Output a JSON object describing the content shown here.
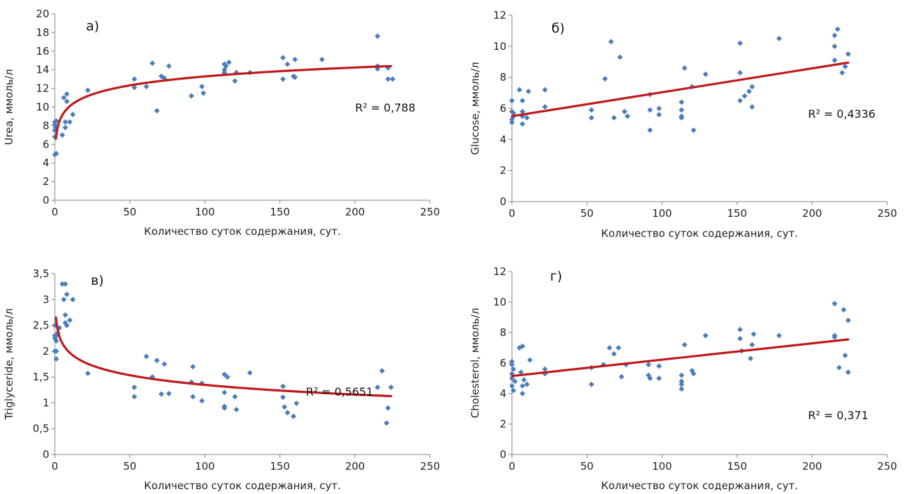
{
  "colors": {
    "point": "#4a7ebb",
    "trend": "#c0181c",
    "axis": "#808080"
  },
  "chart_data": [
    {
      "type": "scatter",
      "panel_label": "а)",
      "xlabel": "Количество суток содержания,  сут.",
      "ylabel": "Urea, ммоль/л",
      "xlim": [
        0,
        250
      ],
      "ylim": [
        0,
        20
      ],
      "xticks": [
        0,
        50,
        100,
        150,
        200,
        250
      ],
      "yticks": [
        0,
        2,
        4,
        6,
        8,
        10,
        12,
        14,
        16,
        18,
        20
      ],
      "ytick_labels": [
        "0",
        "2",
        "4",
        "6",
        "8",
        "10",
        "12",
        "14",
        "16",
        "18",
        "20"
      ],
      "grid": false,
      "trend": {
        "type": "logarithmic",
        "x_start": 0.8,
        "x_end": 224,
        "y_start": 6.6,
        "y_end": 14.4
      },
      "r2_label": "R² = 0,788",
      "points": [
        [
          0,
          4.9
        ],
        [
          0,
          6.8
        ],
        [
          0,
          7.5
        ],
        [
          0,
          8.1
        ],
        [
          0,
          8.4
        ],
        [
          0.5,
          7.8
        ],
        [
          1,
          5
        ],
        [
          1,
          8.5
        ],
        [
          5,
          7
        ],
        [
          6,
          11
        ],
        [
          7,
          7.8
        ],
        [
          7,
          8.4
        ],
        [
          8,
          11.4
        ],
        [
          8,
          10.6
        ],
        [
          10,
          8.4
        ],
        [
          12,
          9.2
        ],
        [
          22,
          11.8
        ],
        [
          53,
          12.1
        ],
        [
          53,
          13
        ],
        [
          61,
          12.2
        ],
        [
          65,
          14.7
        ],
        [
          68,
          9.6
        ],
        [
          71,
          13.3
        ],
        [
          73,
          13.1
        ],
        [
          76,
          14.4
        ],
        [
          91,
          11.2
        ],
        [
          98,
          12.2
        ],
        [
          99,
          11.5
        ],
        [
          113,
          14
        ],
        [
          113,
          13.7
        ],
        [
          113,
          14.6
        ],
        [
          114,
          14.4
        ],
        [
          116,
          14.8
        ],
        [
          120,
          12.8
        ],
        [
          121,
          13.7
        ],
        [
          130,
          13.7
        ],
        [
          152,
          15.3
        ],
        [
          152,
          13
        ],
        [
          155,
          14.6
        ],
        [
          159,
          13.3
        ],
        [
          160,
          13.2
        ],
        [
          160,
          15.1
        ],
        [
          178,
          15.1
        ],
        [
          215,
          17.6
        ],
        [
          215,
          14.4
        ],
        [
          215,
          14.1
        ],
        [
          222,
          14.2
        ],
        [
          222,
          13
        ],
        [
          225,
          13
        ]
      ]
    },
    {
      "type": "scatter",
      "panel_label": "б)",
      "xlabel": "Количество суток содержания,  сут.",
      "ylabel": "Glucose, ммоль/л",
      "xlim": [
        0,
        250
      ],
      "ylim": [
        0,
        12
      ],
      "xticks": [
        0,
        50,
        100,
        150,
        200,
        250
      ],
      "yticks": [
        0,
        2,
        4,
        6,
        8,
        10,
        12
      ],
      "ytick_labels": [
        "0",
        "2",
        "4",
        "6",
        "8",
        "10",
        "12"
      ],
      "grid": false,
      "trend": {
        "type": "linear",
        "x_start": 0,
        "x_end": 224,
        "y_start": 5.5,
        "y_end": 8.95
      },
      "r2_label": "R² = 0,4336",
      "points": [
        [
          0,
          6.5
        ],
        [
          0,
          5.8
        ],
        [
          0,
          5.3
        ],
        [
          0,
          5.1
        ],
        [
          1,
          5.7
        ],
        [
          1,
          5.5
        ],
        [
          5,
          7.2
        ],
        [
          7,
          6.5
        ],
        [
          7,
          5
        ],
        [
          7,
          5.8
        ],
        [
          7,
          5.5
        ],
        [
          10,
          5.4
        ],
        [
          11,
          7.1
        ],
        [
          22,
          7.2
        ],
        [
          22,
          6.1
        ],
        [
          53,
          5.9
        ],
        [
          53,
          5.4
        ],
        [
          62,
          7.9
        ],
        [
          66,
          10.3
        ],
        [
          68,
          5.4
        ],
        [
          72,
          9.3
        ],
        [
          75,
          5.8
        ],
        [
          77,
          5.5
        ],
        [
          92,
          6.9
        ],
        [
          92,
          5.9
        ],
        [
          92,
          4.6
        ],
        [
          98,
          5.6
        ],
        [
          98,
          6
        ],
        [
          113,
          6.4
        ],
        [
          113,
          5.9
        ],
        [
          113,
          5.5
        ],
        [
          113,
          5.4
        ],
        [
          115,
          8.6
        ],
        [
          120,
          7.4
        ],
        [
          121,
          4.6
        ],
        [
          129,
          8.2
        ],
        [
          152,
          8.3
        ],
        [
          152,
          10.2
        ],
        [
          152,
          6.5
        ],
        [
          155,
          6.8
        ],
        [
          158,
          7.1
        ],
        [
          160,
          7.4
        ],
        [
          160,
          6.1
        ],
        [
          178,
          10.5
        ],
        [
          215,
          10.7
        ],
        [
          215,
          10
        ],
        [
          217,
          11.1
        ],
        [
          220,
          8.3
        ],
        [
          222,
          8.7
        ],
        [
          224,
          9.5
        ],
        [
          215,
          9.1
        ]
      ]
    },
    {
      "type": "scatter",
      "panel_label": "в)",
      "xlabel": "Количество суток содержания,  сут.",
      "ylabel": "Triglyceride,  ммоль/л",
      "xlim": [
        0,
        250
      ],
      "ylim": [
        0,
        3.5
      ],
      "xticks": [
        0,
        50,
        100,
        150,
        200,
        250
      ],
      "yticks": [
        0,
        0.5,
        1,
        1.5,
        2,
        2.5,
        3,
        3.5
      ],
      "ytick_labels": [
        "0",
        "0,5",
        "1",
        "1,5",
        "2",
        "2,5",
        "3",
        "3,5"
      ],
      "grid": false,
      "trend": {
        "type": "logarithmic",
        "x_start": 0.8,
        "x_end": 224,
        "y_start": 2.65,
        "y_end": 1.13
      },
      "r2_label": "R² = 0,5651",
      "points": [
        [
          0,
          2
        ],
        [
          0,
          2.3
        ],
        [
          0,
          2.25
        ],
        [
          0,
          2.5
        ],
        [
          1,
          2.3
        ],
        [
          1,
          2.2
        ],
        [
          1,
          1.85
        ],
        [
          1,
          2
        ],
        [
          2,
          2.35
        ],
        [
          3,
          2.45
        ],
        [
          5,
          3.3
        ],
        [
          6,
          3
        ],
        [
          7,
          2.55
        ],
        [
          7,
          3.3
        ],
        [
          7,
          2.7
        ],
        [
          8,
          3.1
        ],
        [
          8,
          2.5
        ],
        [
          10,
          2.6
        ],
        [
          12,
          3
        ],
        [
          22,
          1.57
        ],
        [
          53,
          1.3
        ],
        [
          53,
          1.12
        ],
        [
          61,
          1.9
        ],
        [
          65,
          1.5
        ],
        [
          68,
          1.82
        ],
        [
          71,
          1.17
        ],
        [
          73,
          1.75
        ],
        [
          76,
          1.18
        ],
        [
          91,
          1.4
        ],
        [
          92,
          1.7
        ],
        [
          92,
          1.12
        ],
        [
          98,
          1.38
        ],
        [
          98,
          1.04
        ],
        [
          113,
          1.55
        ],
        [
          113,
          1.2
        ],
        [
          113,
          0.93
        ],
        [
          113,
          0.9
        ],
        [
          115,
          1.5
        ],
        [
          120,
          1.12
        ],
        [
          121,
          0.87
        ],
        [
          130,
          1.58
        ],
        [
          152,
          1.32
        ],
        [
          152,
          1.11
        ],
        [
          153,
          0.92
        ],
        [
          155,
          0.81
        ],
        [
          159,
          0.74
        ],
        [
          161,
          0.99
        ],
        [
          215,
          1.3
        ],
        [
          218,
          1.62
        ],
        [
          221,
          0.61
        ],
        [
          222,
          0.9
        ],
        [
          224,
          1.3
        ]
      ]
    },
    {
      "type": "scatter",
      "panel_label": "г)",
      "xlabel": "Количество суток содержания,  сут.",
      "ylabel": "Cholesterol,  ммоль/л",
      "xlim": [
        0,
        250
      ],
      "ylim": [
        0,
        12
      ],
      "xticks": [
        0,
        50,
        100,
        150,
        200,
        250
      ],
      "yticks": [
        0,
        2,
        4,
        6,
        8,
        10,
        12
      ],
      "ytick_labels": [
        "0",
        "2",
        "4",
        "6",
        "8",
        "10",
        "12"
      ],
      "grid": false,
      "trend": {
        "type": "linear",
        "x_start": 0,
        "x_end": 224,
        "y_start": 5.15,
        "y_end": 7.55
      },
      "r2_label": "R² = 0,371",
      "points": [
        [
          0,
          6.1
        ],
        [
          0,
          5.9
        ],
        [
          0,
          5.3
        ],
        [
          0,
          5
        ],
        [
          0,
          4.5
        ],
        [
          1,
          5.6
        ],
        [
          1,
          4.2
        ],
        [
          2,
          4.8
        ],
        [
          5,
          7
        ],
        [
          6,
          5.4
        ],
        [
          7,
          7.1
        ],
        [
          7,
          4.5
        ],
        [
          7,
          4
        ],
        [
          8,
          4.9
        ],
        [
          10,
          4.6
        ],
        [
          12,
          6.2
        ],
        [
          22,
          5.6
        ],
        [
          22,
          5.3
        ],
        [
          53,
          5.7
        ],
        [
          53,
          4.6
        ],
        [
          61,
          5.9
        ],
        [
          65,
          7
        ],
        [
          68,
          6.6
        ],
        [
          71,
          7
        ],
        [
          73,
          5.1
        ],
        [
          76,
          5.9
        ],
        [
          91,
          5.9
        ],
        [
          91,
          5.2
        ],
        [
          92,
          5
        ],
        [
          98,
          5.8
        ],
        [
          98,
          5
        ],
        [
          113,
          5.2
        ],
        [
          113,
          4.8
        ],
        [
          113,
          4.6
        ],
        [
          113,
          4.3
        ],
        [
          115,
          7.2
        ],
        [
          120,
          5.5
        ],
        [
          121,
          5.3
        ],
        [
          129,
          7.8
        ],
        [
          152,
          8.2
        ],
        [
          152,
          7.6
        ],
        [
          153,
          6.8
        ],
        [
          159,
          6.3
        ],
        [
          160,
          7.2
        ],
        [
          161,
          7.9
        ],
        [
          178,
          7.8
        ],
        [
          215,
          9.9
        ],
        [
          215,
          7.8
        ],
        [
          215,
          7.7
        ],
        [
          218,
          5.7
        ],
        [
          221,
          9.5
        ],
        [
          222,
          6.5
        ],
        [
          224,
          8.8
        ],
        [
          224,
          5.4
        ]
      ]
    }
  ]
}
